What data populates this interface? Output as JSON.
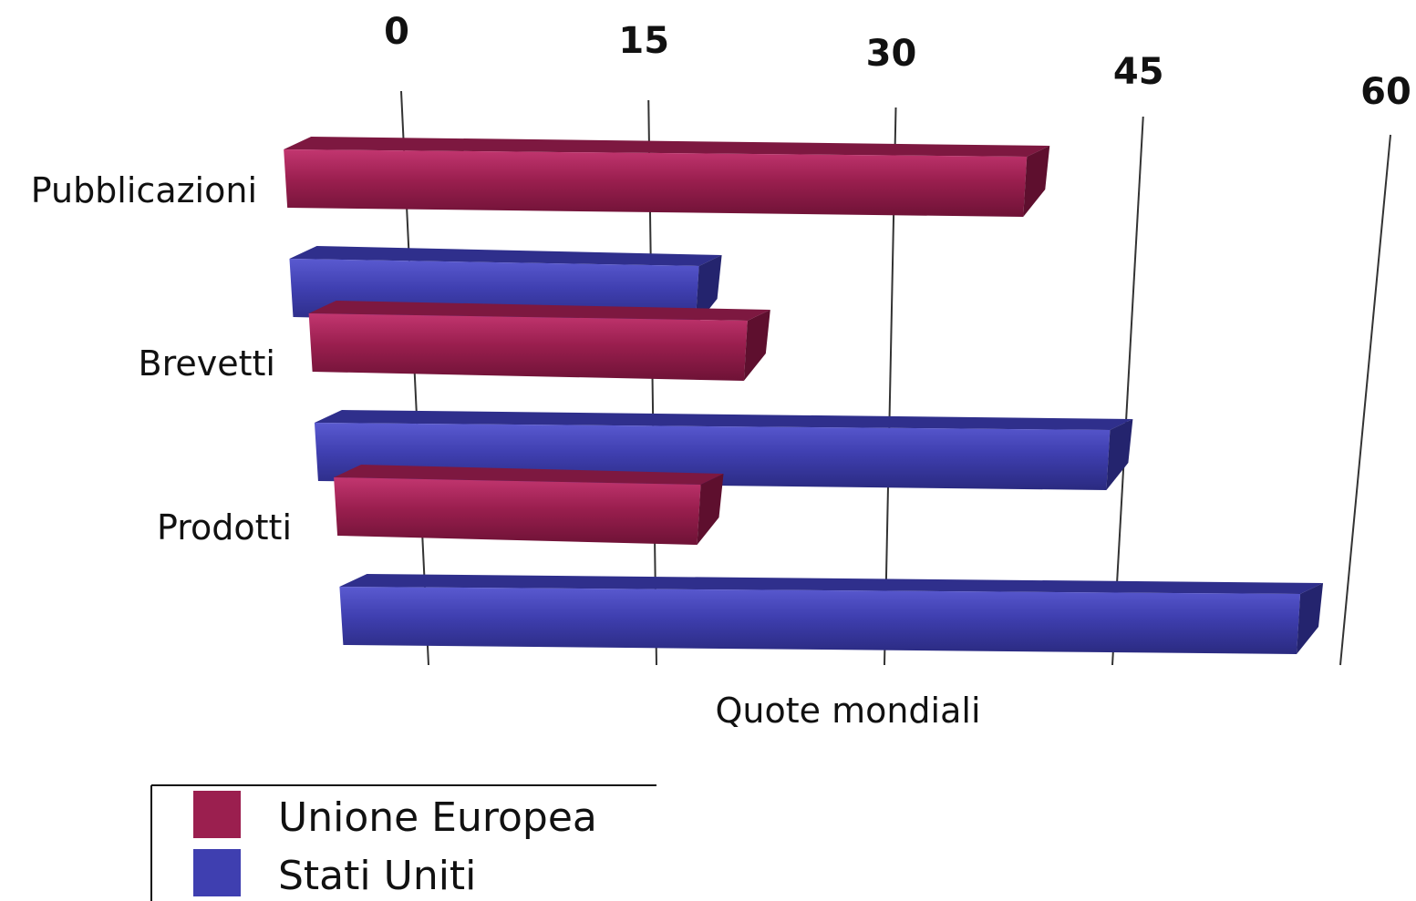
{
  "chart_data": {
    "type": "bar",
    "orientation": "horizontal",
    "categories": [
      "Pubblicazioni",
      "Brevetti",
      "Prodotti"
    ],
    "series": [
      {
        "name": "Unione Europea",
        "color": "#9b1f4f",
        "values": [
          38,
          21,
          18
        ]
      },
      {
        "name": "Stati Uniti",
        "color": "#3f3fb0",
        "values": [
          18,
          44,
          57
        ]
      }
    ],
    "xlabel": "Quote mondiali",
    "ylabel": "",
    "xlim": [
      0,
      60
    ],
    "xticks": [
      "0",
      "15",
      "30",
      "45",
      "60"
    ],
    "grid": true,
    "legend_position": "bottom-left",
    "style": "3d-perspective"
  }
}
